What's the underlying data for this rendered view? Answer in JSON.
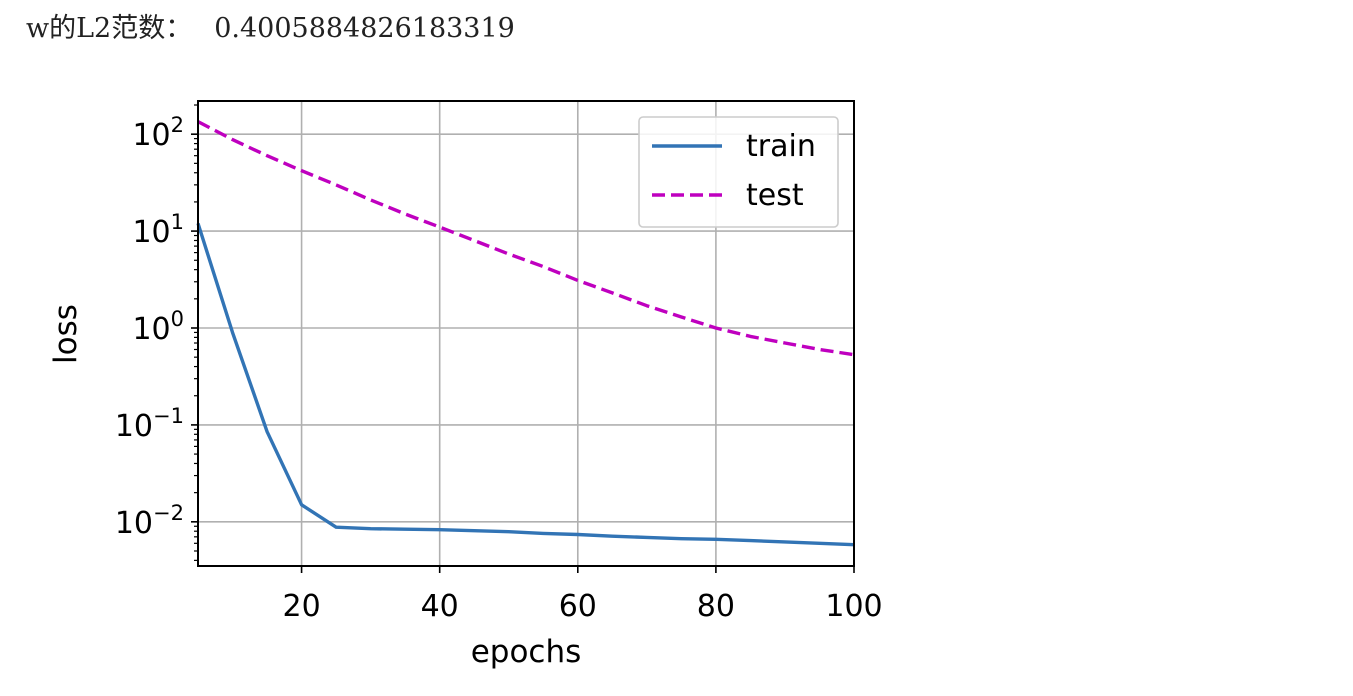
{
  "output": {
    "label": "w的L2范数：",
    "value": "0.4005884826183319"
  },
  "chart_data": {
    "type": "line",
    "title": "",
    "xlabel": "epochs",
    "ylabel": "loss",
    "xlim": [
      5,
      100
    ],
    "ylim": [
      0.0035,
      220
    ],
    "yscale": "log",
    "grid": true,
    "legend_position": "top-right",
    "x_ticks": [
      20,
      40,
      60,
      80,
      100
    ],
    "y_ticks": [
      {
        "base": "10",
        "exp": "−2",
        "value": 0.01
      },
      {
        "base": "10",
        "exp": "−1",
        "value": 0.1
      },
      {
        "base": "10",
        "exp": "0",
        "value": 1
      },
      {
        "base": "10",
        "exp": "1",
        "value": 10
      },
      {
        "base": "10",
        "exp": "2",
        "value": 100
      }
    ],
    "x": [
      5,
      10,
      15,
      20,
      25,
      30,
      35,
      40,
      45,
      50,
      55,
      60,
      65,
      70,
      75,
      80,
      85,
      90,
      95,
      100
    ],
    "series": [
      {
        "name": "train",
        "color": "#3274b5",
        "style": "solid",
        "values": [
          12,
          0.9,
          0.085,
          0.015,
          0.0088,
          0.0085,
          0.0084,
          0.0083,
          0.0081,
          0.0079,
          0.0076,
          0.0074,
          0.0071,
          0.0069,
          0.0067,
          0.0066,
          0.0064,
          0.0062,
          0.006,
          0.0058
        ]
      },
      {
        "name": "test",
        "color": "#bf00bf",
        "style": "dashed",
        "values": [
          135,
          88,
          60,
          42,
          30,
          21,
          15,
          11,
          8,
          5.8,
          4.3,
          3.1,
          2.3,
          1.7,
          1.3,
          1.0,
          0.82,
          0.7,
          0.6,
          0.53
        ]
      }
    ]
  }
}
